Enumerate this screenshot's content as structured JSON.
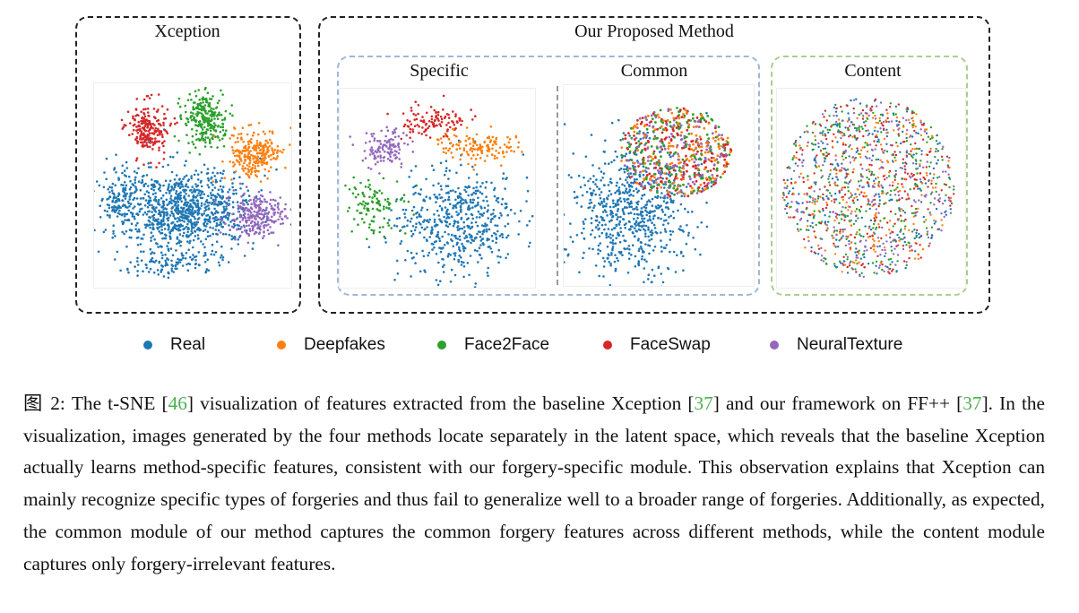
{
  "panels": {
    "xception_title": "Xception",
    "proposed_title": "Our Proposed Method",
    "specific_title": "Specific",
    "common_title": "Common",
    "content_title": "Content"
  },
  "colors": {
    "Real": "#1f77b4",
    "Deepfakes": "#ff7f0e",
    "Face2Face": "#2ca02c",
    "FaceSwap": "#d62728",
    "NeuralTexture": "#9467bd",
    "frame_blue": "#9db8d9",
    "frame_green": "#a9cf8f"
  },
  "legend": [
    {
      "label": "Real",
      "color": "#1f77b4"
    },
    {
      "label": "Deepfakes",
      "color": "#ff7f0e"
    },
    {
      "label": "Face2Face",
      "color": "#2ca02c"
    },
    {
      "label": "FaceSwap",
      "color": "#d62728"
    },
    {
      "label": "NeuralTexture",
      "color": "#9467bd"
    }
  ],
  "caption": {
    "prefix": "图 2: The t-SNE [",
    "ref1": "46",
    "part2": "] visualization of features extracted from the baseline Xception [",
    "ref2": "37",
    "part3": "] and our framework on FF++ [",
    "ref3": "37",
    "part4": "]. In the visualization, images generated by the four methods locate separately in the latent space, which reveals that the baseline Xception actually learns method-specific features, consistent with our forgery-specific module.  This observation explains that Xception can mainly recognize specific types of forgeries and thus fail to generalize well to a broader range of forgeries.  Additionally, as expected, the common module of our method captures the common forgery features across different methods, while the content module captures only forgery-irrelevant features."
  }
}
